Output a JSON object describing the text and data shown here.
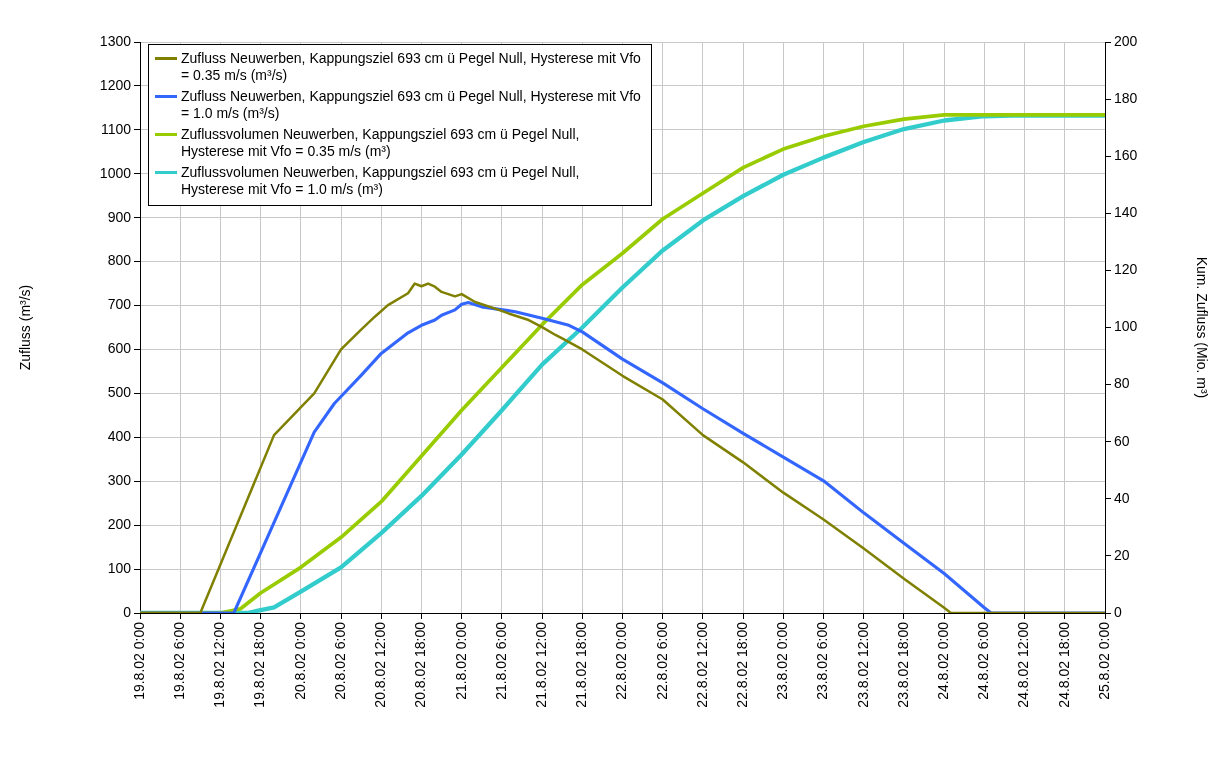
{
  "chart_data": {
    "type": "line",
    "ylabel": "Zufluss (m³/s)",
    "y2label": "Kum. Zufluss (Mio. m³)",
    "xlim": [
      "--08-19T00:00",
      "--08-25T00:00"
    ],
    "xticks": [
      {
        "value": "--08-19T00:00",
        "label": "19.8.02 0:00"
      },
      {
        "value": "--08-19T06:00",
        "label": "19.8.02 6:00"
      },
      {
        "value": "--08-19T12:00",
        "label": "19.8.02 12:00"
      },
      {
        "value": "--08-19T18:00",
        "label": "19.8.02 18:00"
      },
      {
        "value": "--08-20T00:00",
        "label": "20.8.02 0:00"
      },
      {
        "value": "--08-20T06:00",
        "label": "20.8.02 6:00"
      },
      {
        "value": "--08-20T12:00",
        "label": "20.8.02 12:00"
      },
      {
        "value": "--08-20T18:00",
        "label": "20.8.02 18:00"
      },
      {
        "value": "--08-21T00:00",
        "label": "21.8.02 0:00"
      },
      {
        "value": "--08-21T06:00",
        "label": "21.8.02 6:00"
      },
      {
        "value": "--08-21T12:00",
        "label": "21.8.02 12:00"
      },
      {
        "value": "--08-21T18:00",
        "label": "21.8.02 18:00"
      },
      {
        "value": "--08-22T00:00",
        "label": "22.8.02 0:00"
      },
      {
        "value": "--08-22T06:00",
        "label": "22.8.02 6:00"
      },
      {
        "value": "--08-22T12:00",
        "label": "22.8.02 12:00"
      },
      {
        "value": "--08-22T18:00",
        "label": "22.8.02 18:00"
      },
      {
        "value": "--08-23T00:00",
        "label": "23.8.02 0:00"
      },
      {
        "value": "--08-23T06:00",
        "label": "23.8.02 6:00"
      },
      {
        "value": "--08-23T12:00",
        "label": "23.8.02 12:00"
      },
      {
        "value": "--08-23T18:00",
        "label": "23.8.02 18:00"
      },
      {
        "value": "--08-24T00:00",
        "label": "24.8.02 0:00"
      },
      {
        "value": "--08-24T06:00",
        "label": "24.8.02 6:00"
      },
      {
        "value": "--08-24T12:00",
        "label": "24.8.02 12:00"
      },
      {
        "value": "--08-24T18:00",
        "label": "24.8.02 18:00"
      },
      {
        "value": "--08-25T00:00",
        "label": "25.8.02 0:00"
      }
    ],
    "ylim": [
      0,
      1300
    ],
    "yticks": [
      0,
      100,
      200,
      300,
      400,
      500,
      600,
      700,
      800,
      900,
      1000,
      1100,
      1200,
      1300
    ],
    "y2lim": [
      0,
      200
    ],
    "y2ticks": [
      0,
      20,
      40,
      60,
      80,
      100,
      120,
      140,
      160,
      180,
      200
    ],
    "grid": true,
    "legend": "top left",
    "series": [
      {
        "name": "Zufluss Neuwerben, Kappungsziel 693 cm ü Pegel Null, Hysterese mit Vfo = 0.35 m/s (m³/s)",
        "color": "#808000",
        "x": [
          "--08-19T00:00",
          "--08-19T09:00",
          "--08-19T20:00",
          "--08-20T02:00",
          "--08-20T06:00",
          "--08-20T09:00",
          "--08-20T11:00",
          "--08-20T13:00",
          "--08-20T16:00",
          "--08-20T17:00",
          "--08-20T18:00",
          "--08-20T19:00",
          "--08-20T20:00",
          "--08-20T21:00",
          "--08-20T23:00",
          "--08-21T00:00",
          "--08-21T02:00",
          "--08-21T05:00",
          "--08-21T07:00",
          "--08-21T10:00",
          "--08-21T12:00",
          "--08-21T14:00",
          "--08-21T15:00",
          "--08-21T18:00",
          "--08-22T00:00",
          "--08-22T06:00",
          "--08-22T12:00",
          "--08-22T18:00",
          "--08-23T00:00",
          "--08-23T06:00",
          "--08-23T12:00",
          "--08-23T18:00",
          "--08-24T00:00",
          "--08-24T01:00",
          "--08-25T00:00"
        ],
        "values": [
          0,
          0,
          405,
          500,
          600,
          645,
          674,
          701,
          728,
          750,
          744,
          750,
          743,
          731,
          721,
          726,
          708,
          693,
          682,
          667,
          651,
          633,
          625,
          600,
          540,
          486,
          405,
          343,
          274,
          213,
          147,
          78,
          12,
          0,
          0
        ]
      },
      {
        "name": "Zufluss Neuwerben, Kappungsziel 693 cm ü Pegel Null, Hysterese mit Vfo = 1.0 m/s (m³/s)",
        "color": "#3366ff",
        "x": [
          "--08-19T00:00",
          "--08-19T14:00",
          "--08-20T02:00",
          "--08-20T05:00",
          "--08-20T09:00",
          "--08-20T12:00",
          "--08-20T16:00",
          "--08-20T18:00",
          "--08-20T20:00",
          "--08-20T21:00",
          "--08-20T23:00",
          "--08-21T00:00",
          "--08-21T01:00",
          "--08-21T03:00",
          "--08-21T08:00",
          "--08-21T12:00",
          "--08-21T16:00",
          "--08-21T18:00",
          "--08-22T00:00",
          "--08-22T06:00",
          "--08-22T12:00",
          "--08-22T18:00",
          "--08-23T00:00",
          "--08-23T06:00",
          "--08-23T12:00",
          "--08-23T18:00",
          "--08-24T00:00",
          "--08-24T06:00",
          "--08-24T07:00",
          "--08-25T00:00"
        ],
        "values": [
          0,
          0,
          412,
          477,
          541,
          591,
          638,
          655,
          667,
          678,
          690,
          703,
          707,
          697,
          686,
          671,
          655,
          640,
          578,
          524,
          465,
          409,
          355,
          301,
          228,
          159,
          90,
          12,
          0,
          0
        ]
      },
      {
        "name": "Zuflussvolumen Neuwerben, Kappungsziel 693 cm ü Pegel Null, Hysterese mit Vfo = 0.35 m/s (m³)",
        "color": "#99cc00",
        "axis": "y2",
        "x": [
          "--08-19T00:00",
          "--08-19T12:00",
          "--08-19T15:00",
          "--08-19T18:00",
          "--08-20T00:00",
          "--08-20T06:00",
          "--08-20T12:00",
          "--08-20T18:00",
          "--08-21T00:00",
          "--08-21T06:00",
          "--08-21T12:00",
          "--08-21T18:00",
          "--08-22T00:00",
          "--08-22T06:00",
          "--08-22T12:00",
          "--08-22T18:00",
          "--08-23T00:00",
          "--08-23T06:00",
          "--08-23T12:00",
          "--08-23T18:00",
          "--08-24T00:00",
          "--08-25T00:00"
        ],
        "values": [
          0,
          0,
          1.5,
          7,
          16,
          26.5,
          39,
          55,
          71,
          86,
          101,
          115,
          126,
          138,
          147,
          156,
          162.5,
          167,
          170.5,
          173,
          174.5,
          174.5
        ]
      },
      {
        "name": "Zuflussvolumen Neuwerben, Kappungsziel 693 cm ü Pegel Null, Hysterese mit Vfo = 1.0 m/s (m³)",
        "color": "#33cccc",
        "axis": "y2",
        "x": [
          "--08-19T00:00",
          "--08-19T16:00",
          "--08-19T20:00",
          "--08-20T00:00",
          "--08-20T06:00",
          "--08-20T12:00",
          "--08-20T18:00",
          "--08-21T00:00",
          "--08-21T06:00",
          "--08-21T12:00",
          "--08-21T18:00",
          "--08-22T00:00",
          "--08-22T06:00",
          "--08-22T12:00",
          "--08-22T18:00",
          "--08-23T00:00",
          "--08-23T06:00",
          "--08-23T12:00",
          "--08-23T18:00",
          "--08-24T00:00",
          "--08-24T06:00",
          "--08-24T10:00",
          "--08-25T00:00"
        ],
        "values": [
          0,
          0,
          2,
          7.5,
          16,
          28,
          41,
          55.5,
          71,
          87,
          100,
          114,
          127,
          137.5,
          146,
          153.5,
          159.5,
          165,
          169.5,
          172.5,
          174,
          174.2,
          174.2
        ]
      }
    ]
  }
}
